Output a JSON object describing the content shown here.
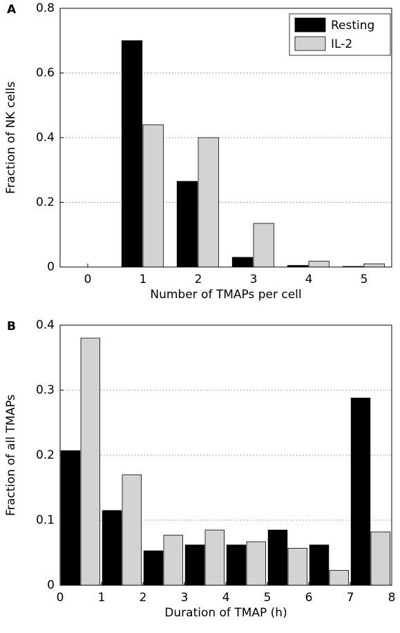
{
  "chart_data": [
    {
      "type": "bar",
      "label": "A",
      "xlabel": "Number of TMAPs per cell",
      "ylabel": "Fraction of NK cells",
      "categories": [
        0,
        1,
        2,
        3,
        4,
        5
      ],
      "series": [
        {
          "name": "Resting",
          "color": "#000000",
          "values": [
            0,
            0.7,
            0.265,
            0.03,
            0.005,
            0.002
          ]
        },
        {
          "name": "IL-2",
          "color": "#d3d3d3",
          "values": [
            0,
            0.44,
            0.4,
            0.135,
            0.018,
            0.01
          ]
        }
      ],
      "ylim": [
        0,
        0.8
      ],
      "yticks": [
        0,
        0.2,
        0.4,
        0.6,
        0.8
      ],
      "grid": true,
      "legend": "upper right"
    },
    {
      "type": "histogram",
      "label": "B",
      "xlabel": "Duration of TMAP (h)",
      "ylabel": "Fraction of all TMAPs",
      "bins": [
        0,
        1,
        2,
        3,
        4,
        5,
        6,
        7,
        8
      ],
      "series": [
        {
          "name": "Resting",
          "color": "#000000",
          "values": [
            0.207,
            0.115,
            0.053,
            0.062,
            0.062,
            0.085,
            0.062,
            0.288
          ]
        },
        {
          "name": "IL-2",
          "color": "#d3d3d3",
          "values": [
            0.38,
            0.17,
            0.077,
            0.085,
            0.067,
            0.057,
            0.023,
            0.082
          ]
        }
      ],
      "xlim": [
        0,
        8
      ],
      "xticks": [
        0,
        1,
        2,
        3,
        4,
        5,
        6,
        7,
        8
      ],
      "ylim": [
        0,
        0.4
      ],
      "yticks": [
        0,
        0.1,
        0.2,
        0.3,
        0.4
      ],
      "grid": true
    }
  ]
}
